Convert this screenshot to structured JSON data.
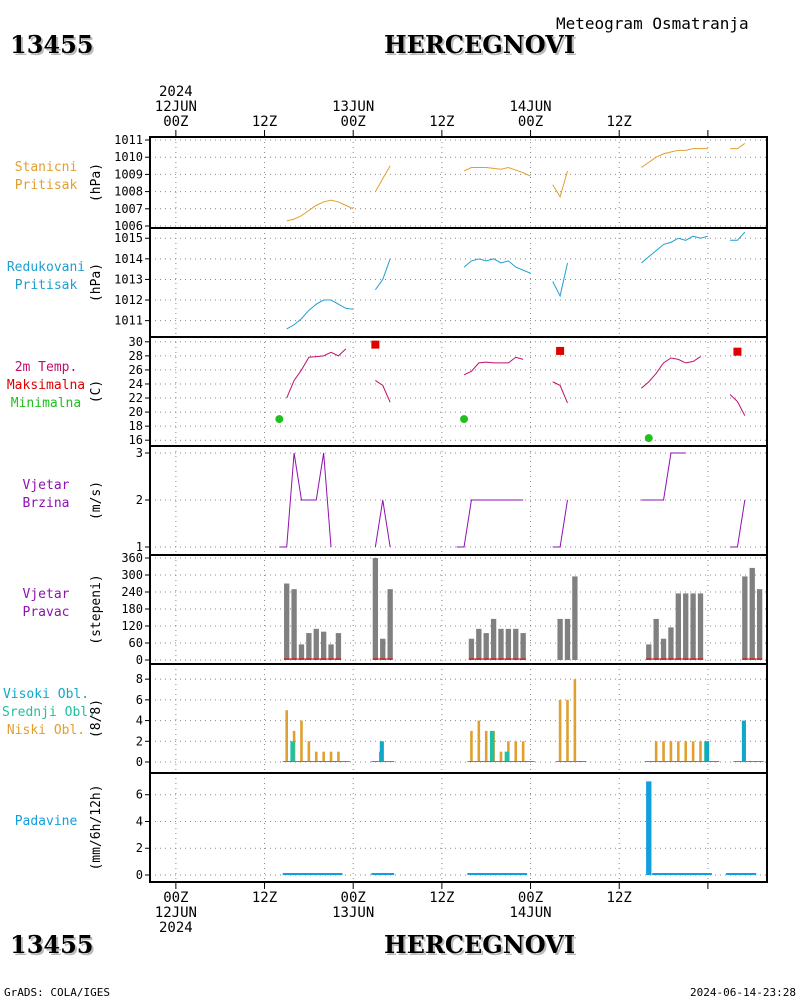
{
  "header": {
    "station_id": "13455",
    "station_name": "HERCEGNOVI",
    "subtitle": "Meteogram Osmatranja"
  },
  "footer": {
    "station_id": "13455",
    "station_name": "HERCEGNOVI",
    "left_text": "GrADS: COLA/IGES",
    "right_text": "2024-06-14-23:28"
  },
  "time_axis": {
    "top_labels": [
      {
        "lines": [
          "2024",
          "12JUN",
          "00Z"
        ]
      },
      {
        "lines": [
          "12Z"
        ]
      },
      {
        "lines": [
          "13JUN",
          "00Z"
        ]
      },
      {
        "lines": [
          "12Z"
        ]
      },
      {
        "lines": [
          "14JUN",
          "00Z"
        ]
      },
      {
        "lines": [
          "12Z"
        ]
      }
    ],
    "bottom_labels": [
      {
        "lines": [
          "00Z",
          "12JUN",
          "2024"
        ]
      },
      {
        "lines": [
          "12Z"
        ]
      },
      {
        "lines": [
          "00Z",
          "13JUN"
        ]
      },
      {
        "lines": [
          "12Z"
        ]
      },
      {
        "lines": [
          "00Z",
          "14JUN"
        ]
      },
      {
        "lines": [
          "12Z"
        ]
      }
    ]
  },
  "panels": {
    "pressure": {
      "label_lines": [
        "Stanicni",
        "Pritisak"
      ],
      "unit": "(hPa)",
      "color": "#e0a030"
    },
    "reduced": {
      "label_lines": [
        "Redukovani",
        "Pritisak"
      ],
      "unit": "(hPa)",
      "color": "#1ea0d0"
    },
    "temp": {
      "label_lines": [
        "2m Temp.",
        "Maksimalna",
        "Minimalna"
      ],
      "line_colors": [
        "#c0106a",
        "#e00000",
        "#20c020"
      ],
      "unit": "(C)"
    },
    "wind_speed": {
      "label_lines": [
        "Vjetar",
        "Brzina"
      ],
      "unit": "(m/s)",
      "color": "#9010b0"
    },
    "wind_dir": {
      "label_lines": [
        "Vjetar",
        "Pravac"
      ],
      "unit": "(stepeni)",
      "color": "#9010b0"
    },
    "clouds": {
      "label_lines": [
        "Visoki Obl.",
        "Srednji Obl.",
        "Niski Obl."
      ],
      "line_colors": [
        "#10a8c8",
        "#20c0a0",
        "#e0a030"
      ],
      "unit": "(8/8)"
    },
    "precip": {
      "label_lines": [
        "Padavine"
      ],
      "unit": "(mm/6h/12h)",
      "color": "#10a0e0"
    }
  },
  "chart_data": [
    {
      "type": "line",
      "name": "station_pressure",
      "ylim": [
        1006,
        1011
      ],
      "yticks": [
        1006,
        1007,
        1008,
        1009,
        1010,
        1011
      ],
      "series": [
        {
          "values": [
            [
              15,
              1006.3
            ],
            [
              16,
              1006.4
            ],
            [
              17,
              1006.6
            ],
            [
              18,
              1006.9
            ],
            [
              19,
              1007.2
            ],
            [
              20,
              1007.4
            ],
            [
              21,
              1007.5
            ],
            [
              22,
              1007.4
            ],
            [
              23,
              1007.2
            ],
            [
              24,
              1007.0
            ]
          ]
        },
        {
          "values": [
            [
              27,
              1008.0
            ],
            [
              29,
              1009.5
            ]
          ]
        },
        {
          "values": [
            [
              39,
              1009.2
            ],
            [
              40,
              1009.4
            ],
            [
              42,
              1009.4
            ],
            [
              44,
              1009.3
            ],
            [
              45,
              1009.4
            ],
            [
              47,
              1009.1
            ],
            [
              48,
              1008.9
            ]
          ]
        },
        {
          "values": [
            [
              51,
              1008.4
            ],
            [
              52,
              1007.7
            ],
            [
              53,
              1009.2
            ]
          ]
        },
        {
          "values": [
            [
              63,
              1009.4
            ],
            [
              64,
              1009.7
            ],
            [
              65,
              1010.0
            ],
            [
              66,
              1010.2
            ],
            [
              67,
              1010.3
            ],
            [
              68,
              1010.4
            ],
            [
              69,
              1010.4
            ],
            [
              70,
              1010.5
            ],
            [
              72,
              1010.5
            ]
          ]
        },
        {
          "values": [
            [
              75,
              1010.5
            ],
            [
              76,
              1010.5
            ],
            [
              77,
              1010.8
            ]
          ]
        }
      ]
    },
    {
      "type": "line",
      "name": "reduced_pressure",
      "ylim": [
        1010.4,
        1015.4
      ],
      "yticks": [
        1011,
        1012,
        1013,
        1014,
        1015
      ],
      "series": [
        {
          "values": [
            [
              15,
              1010.6
            ],
            [
              16,
              1010.8
            ],
            [
              17,
              1011.1
            ],
            [
              18,
              1011.5
            ],
            [
              19,
              1011.8
            ],
            [
              20,
              1012.0
            ],
            [
              21,
              1012.0
            ],
            [
              22,
              1011.8
            ],
            [
              23,
              1011.6
            ],
            [
              24,
              1011.55
            ]
          ]
        },
        {
          "values": [
            [
              27,
              1012.5
            ],
            [
              28,
              1013.0
            ],
            [
              29,
              1014.0
            ]
          ]
        },
        {
          "values": [
            [
              39,
              1013.6
            ],
            [
              40,
              1013.9
            ],
            [
              41,
              1014.0
            ],
            [
              42,
              1013.9
            ],
            [
              43,
              1014.0
            ],
            [
              44,
              1013.8
            ],
            [
              45,
              1013.9
            ],
            [
              46,
              1013.6
            ],
            [
              48,
              1013.3
            ]
          ]
        },
        {
          "values": [
            [
              51,
              1012.9
            ],
            [
              52,
              1012.2
            ],
            [
              53,
              1013.8
            ]
          ]
        },
        {
          "values": [
            [
              63,
              1013.8
            ],
            [
              64,
              1014.1
            ],
            [
              65,
              1014.4
            ],
            [
              66,
              1014.7
            ],
            [
              67,
              1014.8
            ],
            [
              68,
              1015.0
            ],
            [
              69,
              1014.9
            ],
            [
              70,
              1015.1
            ],
            [
              71,
              1015.0
            ],
            [
              72,
              1015.1
            ]
          ]
        },
        {
          "values": [
            [
              75,
              1014.9
            ],
            [
              76,
              1014.9
            ],
            [
              77,
              1015.3
            ]
          ]
        }
      ]
    },
    {
      "type": "line",
      "name": "temperature_2m",
      "ylim": [
        15.6,
        30.4
      ],
      "yticks": [
        16,
        18,
        20,
        22,
        24,
        26,
        28,
        30
      ],
      "series": [
        {
          "name": "2m Temp.",
          "values": [
            [
              15,
              22.0
            ],
            [
              16,
              24.5
            ],
            [
              17,
              26.0
            ],
            [
              18,
              27.8
            ],
            [
              19,
              27.9
            ],
            [
              20,
              28.0
            ],
            [
              21,
              28.5
            ],
            [
              22,
              28.0
            ],
            [
              23,
              29.0
            ]
          ]
        },
        {
          "name": "2m Temp.",
          "values": [
            [
              27,
              24.5
            ],
            [
              28,
              23.8
            ],
            [
              29,
              21.4
            ]
          ]
        },
        {
          "name": "2m Temp.",
          "values": [
            [
              39,
              25.3
            ],
            [
              40,
              25.8
            ],
            [
              41,
              27.0
            ],
            [
              42,
              27.1
            ],
            [
              43,
              27.0
            ],
            [
              44,
              27.0
            ],
            [
              45,
              27.0
            ],
            [
              46,
              27.8
            ],
            [
              47,
              27.5
            ]
          ]
        },
        {
          "name": "2m Temp.",
          "values": [
            [
              51,
              24.3
            ],
            [
              52,
              23.8
            ],
            [
              53,
              21.3
            ]
          ]
        },
        {
          "name": "2m Temp.",
          "values": [
            [
              63,
              23.4
            ],
            [
              64,
              24.3
            ],
            [
              65,
              25.5
            ],
            [
              66,
              27.0
            ],
            [
              67,
              27.7
            ],
            [
              68,
              27.5
            ],
            [
              69,
              27.0
            ],
            [
              70,
              27.2
            ],
            [
              71,
              27.9
            ]
          ]
        },
        {
          "name": "2m Temp.",
          "values": [
            [
              75,
              22.5
            ],
            [
              76,
              21.5
            ],
            [
              77,
              19.5
            ]
          ]
        }
      ],
      "maxima": [
        [
          27,
          29.6
        ],
        [
          52,
          28.7
        ],
        [
          76,
          28.6
        ]
      ],
      "minima": [
        [
          14,
          19.0
        ],
        [
          39,
          19.0
        ],
        [
          64,
          16.3
        ]
      ]
    },
    {
      "type": "line",
      "name": "wind_speed",
      "ylim": [
        1,
        3
      ],
      "yticks": [
        1,
        2,
        3
      ],
      "series": [
        {
          "values": [
            [
              14,
              1
            ],
            [
              15,
              1
            ],
            [
              16,
              3
            ],
            [
              17,
              2
            ],
            [
              18,
              2
            ],
            [
              19,
              2
            ],
            [
              20,
              3
            ],
            [
              21,
              1
            ]
          ]
        },
        {
          "values": [
            [
              27,
              1
            ],
            [
              28,
              2
            ],
            [
              29,
              1
            ]
          ]
        },
        {
          "values": [
            [
              38,
              1
            ],
            [
              39,
              1
            ],
            [
              40,
              2
            ],
            [
              42,
              2
            ],
            [
              44,
              2
            ],
            [
              46,
              2
            ],
            [
              47,
              2
            ]
          ]
        },
        {
          "values": [
            [
              51,
              1
            ],
            [
              52,
              1
            ],
            [
              53,
              2
            ]
          ]
        },
        {
          "values": [
            [
              63,
              2
            ],
            [
              65,
              2
            ],
            [
              66,
              2
            ],
            [
              67,
              3
            ],
            [
              68,
              3
            ],
            [
              69,
              3
            ]
          ]
        },
        {
          "values": [
            [
              75,
              1
            ],
            [
              76,
              1
            ],
            [
              77,
              2
            ]
          ]
        }
      ]
    },
    {
      "type": "bar",
      "name": "wind_direction",
      "ylim": [
        0,
        360
      ],
      "yticks": [
        0,
        60,
        120,
        180,
        240,
        300,
        360
      ],
      "values": [
        [
          15,
          270
        ],
        [
          16,
          250
        ],
        [
          17,
          55
        ],
        [
          18,
          95
        ],
        [
          19,
          110
        ],
        [
          20,
          100
        ],
        [
          21,
          55
        ],
        [
          22,
          95
        ],
        [
          27,
          360
        ],
        [
          28,
          75
        ],
        [
          29,
          250
        ],
        [
          40,
          75
        ],
        [
          41,
          110
        ],
        [
          42,
          95
        ],
        [
          43,
          145
        ],
        [
          44,
          110
        ],
        [
          45,
          110
        ],
        [
          46,
          110
        ],
        [
          47,
          95
        ],
        [
          52,
          145
        ],
        [
          53,
          145
        ],
        [
          54,
          295
        ],
        [
          64,
          55
        ],
        [
          65,
          145
        ],
        [
          66,
          75
        ],
        [
          67,
          115
        ],
        [
          68,
          235
        ],
        [
          69,
          235
        ],
        [
          70,
          235
        ],
        [
          71,
          235
        ],
        [
          77,
          295
        ],
        [
          78,
          325
        ],
        [
          79,
          250
        ]
      ]
    },
    {
      "type": "bar",
      "name": "cloud_cover",
      "ylim": [
        0,
        8.4
      ],
      "yticks": [
        0,
        2,
        4,
        6,
        8
      ],
      "low": [
        [
          15,
          5
        ],
        [
          16,
          3
        ],
        [
          17,
          4
        ],
        [
          18,
          2
        ],
        [
          19,
          1
        ],
        [
          20,
          1
        ],
        [
          21,
          1
        ],
        [
          22,
          1
        ],
        [
          40,
          3
        ],
        [
          41,
          4
        ],
        [
          42,
          3
        ],
        [
          43,
          3
        ],
        [
          44,
          1
        ],
        [
          45,
          2
        ],
        [
          46,
          2
        ],
        [
          47,
          2
        ],
        [
          52,
          6
        ],
        [
          53,
          6
        ],
        [
          54,
          8
        ],
        [
          65,
          2
        ],
        [
          66,
          2
        ],
        [
          67,
          2
        ],
        [
          68,
          2
        ],
        [
          69,
          2
        ],
        [
          70,
          2
        ],
        [
          71,
          2
        ],
        [
          72,
          2
        ]
      ],
      "mid": [
        [
          16,
          2
        ],
        [
          28,
          1
        ],
        [
          43,
          3
        ],
        [
          45,
          1
        ],
        [
          72,
          2
        ]
      ],
      "high": [
        [
          28,
          2
        ],
        [
          72,
          2
        ],
        [
          77,
          4
        ]
      ]
    },
    {
      "type": "bar",
      "name": "precipitation",
      "ylim": [
        0,
        7.4
      ],
      "yticks": [
        0,
        2,
        4,
        6
      ],
      "values": [
        [
          64,
          7
        ]
      ]
    }
  ]
}
